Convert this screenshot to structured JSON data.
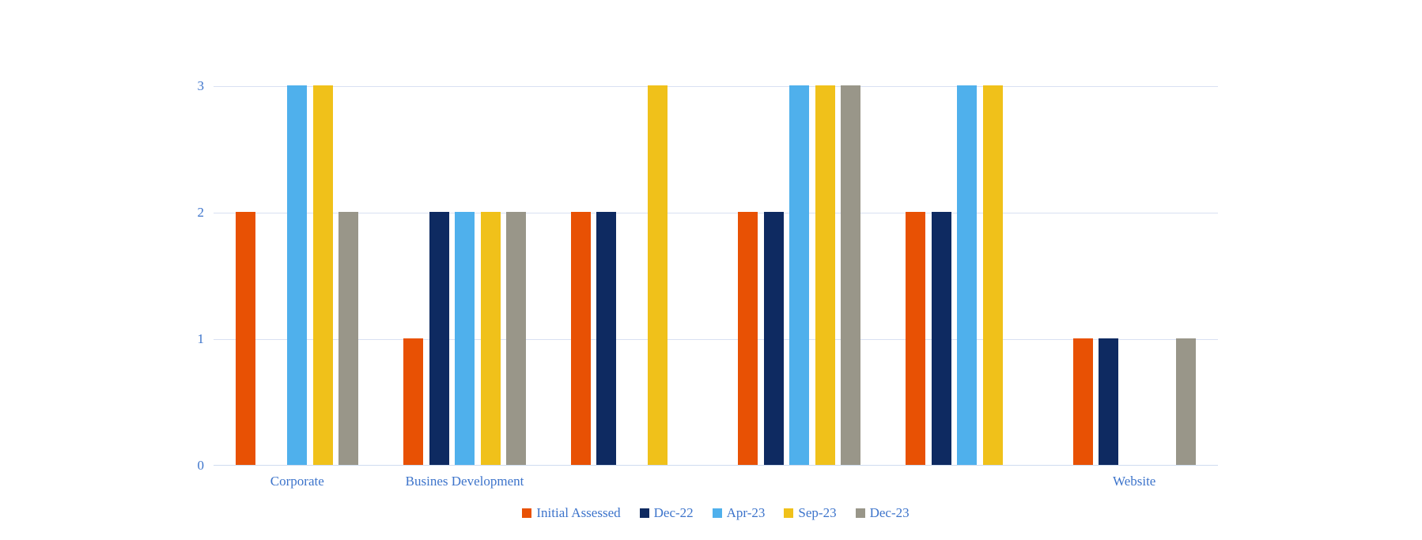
{
  "chart_data": {
    "type": "bar",
    "title": "",
    "categories": [
      "Corporate",
      "Busines Development",
      "",
      "",
      "",
      "Website"
    ],
    "series": [
      {
        "name": "Initial Assessed",
        "color": "#e85104",
        "values": [
          2,
          1,
          2,
          2,
          2,
          1
        ]
      },
      {
        "name": "Dec-22",
        "color": "#0e2a61",
        "values": [
          null,
          2,
          2,
          2,
          2,
          1
        ]
      },
      {
        "name": "Apr-23",
        "color": "#4fb0ec",
        "values": [
          3,
          2,
          null,
          3,
          3,
          null
        ]
      },
      {
        "name": "Sep-23",
        "color": "#f0c11a",
        "values": [
          3,
          2,
          3,
          3,
          3,
          null
        ]
      },
      {
        "name": "Dec-23",
        "color": "#999689",
        "values": [
          2,
          2,
          null,
          3,
          null,
          1
        ]
      }
    ],
    "y_axis": {
      "min": 0,
      "max": 3,
      "ticks": [
        3,
        2,
        1,
        0
      ]
    },
    "x_axis": {
      "visible_labels": [
        "Corporate",
        "Busines Development",
        "Website"
      ]
    },
    "legend_position": "bottom",
    "grid": true,
    "colors": {
      "text": "#3d74cb",
      "gridline": "#d9e1f2",
      "background": "#ffffff"
    }
  }
}
